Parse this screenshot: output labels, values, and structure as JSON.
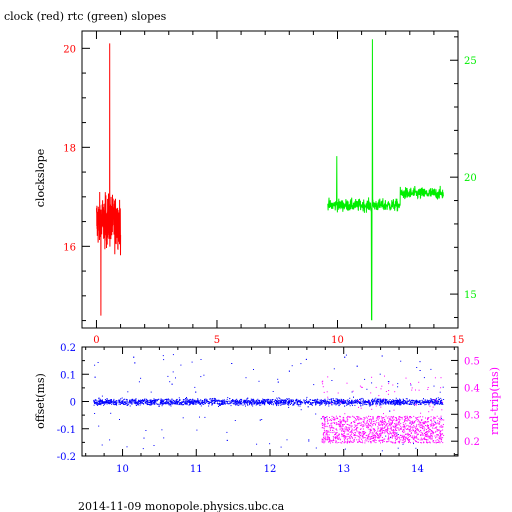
{
  "chart_data": [
    {
      "type": "line",
      "title": "clock (red) rtc (green) slopes",
      "ylabel": "clockslope",
      "xlim": [
        -0.6,
        15
      ],
      "x_ticks": [
        0,
        5,
        10,
        15
      ],
      "ylim_left": [
        14.35,
        20.35
      ],
      "y_ticks_left": [
        16,
        18,
        20
      ],
      "ylim_right": [
        13.55,
        26.25
      ],
      "y_ticks_right": [
        15,
        20,
        25
      ],
      "colors": {
        "axes": "#000000",
        "clock": "#ff0000",
        "rtc": "#00ee00",
        "xticks": "#ff0000"
      },
      "series": [
        {
          "axis": "left",
          "color": "#ff0000",
          "x_range": [
            0.0,
            1.0
          ],
          "baseline": 16.5,
          "min": 14.6,
          "max": 20.1
        },
        {
          "axis": "right",
          "color": "#00ee00",
          "x_range": [
            9.6,
            14.4
          ],
          "baseline": 18.8,
          "min": 13.9,
          "max": 25.9
        }
      ]
    },
    {
      "type": "scatter",
      "xlim": [
        9.45,
        14.55
      ],
      "x_ticks": [
        10,
        11,
        12,
        13,
        14
      ],
      "ylabel": "offset(ms)",
      "ylim": [
        -0.2,
        0.2
      ],
      "y_ticks": [
        "-0.2",
        "-0.1",
        "0",
        "0.1",
        "0.2"
      ],
      "ylabel_right": "rnd-trip(ms)",
      "ylim_right": [
        0.145,
        0.55
      ],
      "y_ticks_right": [
        "0.2",
        "0.3",
        "0.4",
        "0.5"
      ],
      "colors": {
        "offset": "#0000ff",
        "rndtrip": "#ff00ff"
      },
      "series": [
        {
          "axis": "left",
          "color": "#0000ff",
          "x_range": [
            9.6,
            14.35
          ],
          "center": 0.0,
          "band": 0.02
        },
        {
          "axis": "right",
          "color": "#ff00ff",
          "x_range": [
            12.7,
            14.35
          ],
          "center": 0.245,
          "band": 0.05
        }
      ]
    }
  ],
  "footer": "2014-11-09  monopole.physics.ubc.ca"
}
